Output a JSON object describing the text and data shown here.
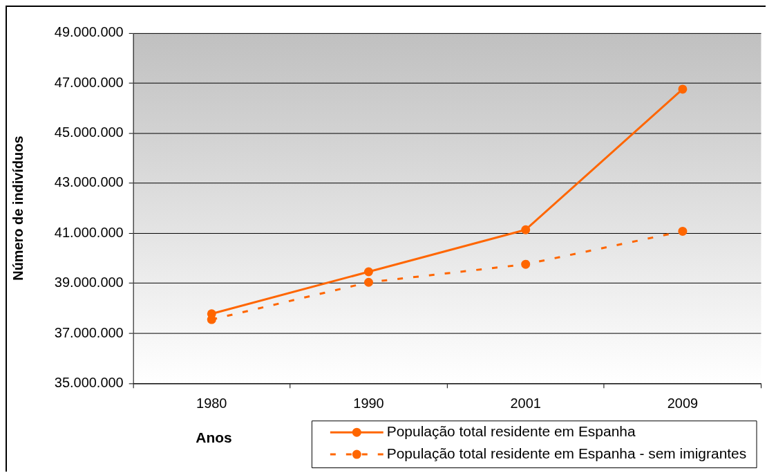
{
  "chart_data": {
    "type": "line",
    "xlabel": "Anos",
    "ylabel": "Número de indivíduos",
    "categories": [
      "1980",
      "1990",
      "2001",
      "2009"
    ],
    "series": [
      {
        "name": "População total residente em Espanha",
        "color": "#ff6600",
        "line_style": "solid",
        "values": [
          37780000,
          39460000,
          41140000,
          46760000
        ]
      },
      {
        "name": "População total residente em Espanha - sem imigrantes",
        "color": "#ff6600",
        "line_style": "dashed",
        "values": [
          37550000,
          39040000,
          39760000,
          41080000
        ]
      }
    ],
    "ylim": [
      35000000,
      49000000
    ],
    "yticks": [
      {
        "value": 35000000,
        "label": "35.000.000"
      },
      {
        "value": 37000000,
        "label": "37.000.000"
      },
      {
        "value": 39000000,
        "label": "39.000.000"
      },
      {
        "value": 41000000,
        "label": "41.000.000"
      },
      {
        "value": 43000000,
        "label": "43.000.000"
      },
      {
        "value": 45000000,
        "label": "45.000.000"
      },
      {
        "value": 47000000,
        "label": "47.000.000"
      },
      {
        "value": 49000000,
        "label": "49.000.000"
      }
    ],
    "grid": "y",
    "legend": "bottom right",
    "marker": "circle"
  }
}
